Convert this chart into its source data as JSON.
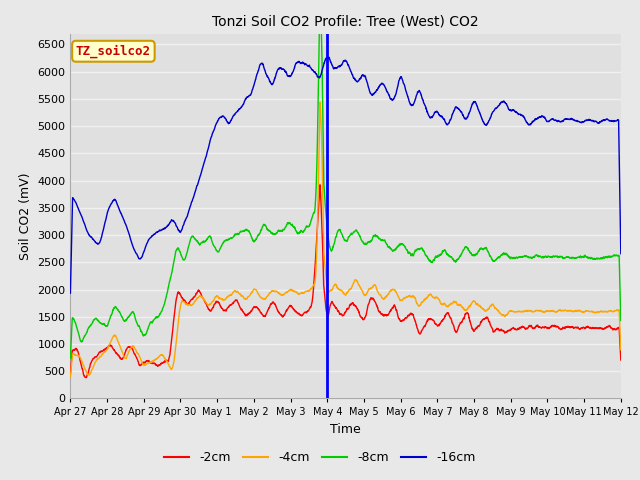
{
  "title": "Tonzi Soil CO2 Profile: Tree (West) CO2",
  "ylabel": "Soil CO2 (mV)",
  "xlabel": "Time",
  "ylim": [
    0,
    6700
  ],
  "yticks": [
    0,
    500,
    1000,
    1500,
    2000,
    2500,
    3000,
    3500,
    4000,
    4500,
    5000,
    5500,
    6000,
    6500
  ],
  "bg_color": "#e8e8e8",
  "plot_bg_color": "#e0e0e0",
  "grid_color": "#f0f0f0",
  "label_box_color": "#ffffcc",
  "label_box_edge": "#cc9900",
  "label_text_color": "#cc0000",
  "line_colors": {
    "2cm": "#ff0000",
    "4cm": "#ffa500",
    "8cm": "#00cc00",
    "16cm": "#0000cc"
  },
  "vline_color": "#0000ff",
  "legend_labels": [
    "-2cm",
    "-4cm",
    "-8cm",
    "-16cm"
  ],
  "legend_colors": [
    "#ff0000",
    "#ffa500",
    "#00cc00",
    "#0000cc"
  ],
  "x_tick_labels": [
    "Apr 27",
    "Apr 28",
    "Apr 29",
    "Apr 30",
    "May 1",
    "May 2",
    "May 3",
    "May 4",
    "May 5",
    "May 6",
    "May 7",
    "May 8",
    "May 9",
    "May 10",
    "May 11",
    "May 12"
  ],
  "x_tick_positions": [
    0,
    1,
    2,
    3,
    4,
    5,
    6,
    7,
    8,
    9,
    10,
    11,
    12,
    13,
    14,
    15
  ]
}
